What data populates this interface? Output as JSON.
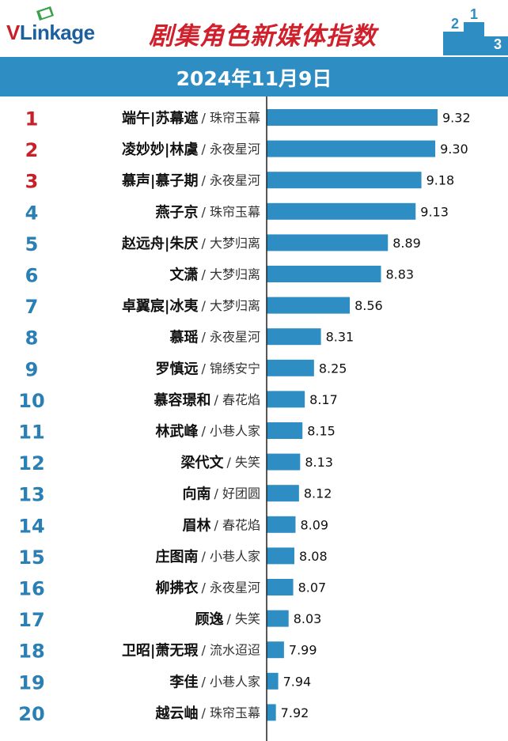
{
  "header": {
    "logo_v": "V",
    "logo_rest": "Linkage",
    "title": "剧集角色新媒体指数",
    "podium_numbers": [
      "2",
      "1",
      "3"
    ]
  },
  "date": "2024年11月9日",
  "colors": {
    "bar": "#2e8ec4",
    "band": "#2e8ec4",
    "rank_top3": "#c8202a",
    "rank_rest": "#2a7fb5",
    "title": "#d0202c"
  },
  "chart_data": {
    "type": "bar",
    "orientation": "horizontal",
    "title": "剧集角色新媒体指数",
    "subtitle": "2024年11月9日",
    "ranks": [
      1,
      2,
      3,
      4,
      5,
      6,
      7,
      8,
      9,
      10,
      11,
      12,
      13,
      14,
      15,
      16,
      17,
      18,
      19,
      20
    ],
    "categories": [
      "端午|苏幕遮 / 珠帘玉幕",
      "凌妙妙|林虞 / 永夜星河",
      "慕声|慕子期 / 永夜星河",
      "燕子京 / 珠帘玉幕",
      "赵远舟|朱厌 / 大梦归离",
      "文潇 / 大梦归离",
      "卓翼宸|冰夷 / 大梦归离",
      "慕瑶 / 永夜星河",
      "罗慎远 / 锦绣安宁",
      "慕容璟和 / 春花焰",
      "林武峰 / 小巷人家",
      "梁代文 / 失笑",
      "向南 / 好团圆",
      "眉林 / 春花焰",
      "庄图南 / 小巷人家",
      "柳拂衣 / 永夜星河",
      "顾逸 / 失笑",
      "卫昭|萧无瑕 / 流水迢迢",
      "李佳 / 小巷人家",
      "越云岫 / 珠帘玉幕"
    ],
    "characters": [
      "端午|苏幕遮",
      "凌妙妙|林虞",
      "慕声|慕子期",
      "燕子京",
      "赵远舟|朱厌",
      "文潇",
      "卓翼宸|冰夷",
      "慕瑶",
      "罗慎远",
      "慕容璟和",
      "林武峰",
      "梁代文",
      "向南",
      "眉林",
      "庄图南",
      "柳拂衣",
      "顾逸",
      "卫昭|萧无瑕",
      "李佳",
      "越云岫"
    ],
    "shows": [
      "/ 珠帘玉幕",
      "/ 永夜星河",
      "/ 永夜星河",
      "/ 珠帘玉幕",
      "/ 大梦归离",
      "/ 大梦归离",
      "/ 大梦归离",
      "/ 永夜星河",
      "/ 锦绣安宁",
      "/ 春花焰",
      "/ 小巷人家",
      "/ 失笑",
      "/ 好团圆",
      "/ 春花焰",
      "/ 小巷人家",
      "/ 永夜星河",
      "/ 失笑",
      "/ 流水迢迢",
      "/ 小巷人家",
      "/ 珠帘玉幕"
    ],
    "values": [
      9.32,
      9.3,
      9.18,
      9.13,
      8.89,
      8.83,
      8.56,
      8.31,
      8.25,
      8.17,
      8.15,
      8.13,
      8.12,
      8.09,
      8.08,
      8.07,
      8.03,
      7.99,
      7.94,
      7.92
    ],
    "value_labels": [
      "9.32",
      "9.30",
      "9.18",
      "9.13",
      "8.89",
      "8.83",
      "8.56",
      "8.31",
      "8.25",
      "8.17",
      "8.15",
      "8.13",
      "8.12",
      "8.09",
      "8.08",
      "8.07",
      "8.03",
      "7.99",
      "7.94",
      "7.92"
    ],
    "xlim": [
      7.84,
      9.32
    ],
    "grid": false,
    "legend": "none"
  }
}
